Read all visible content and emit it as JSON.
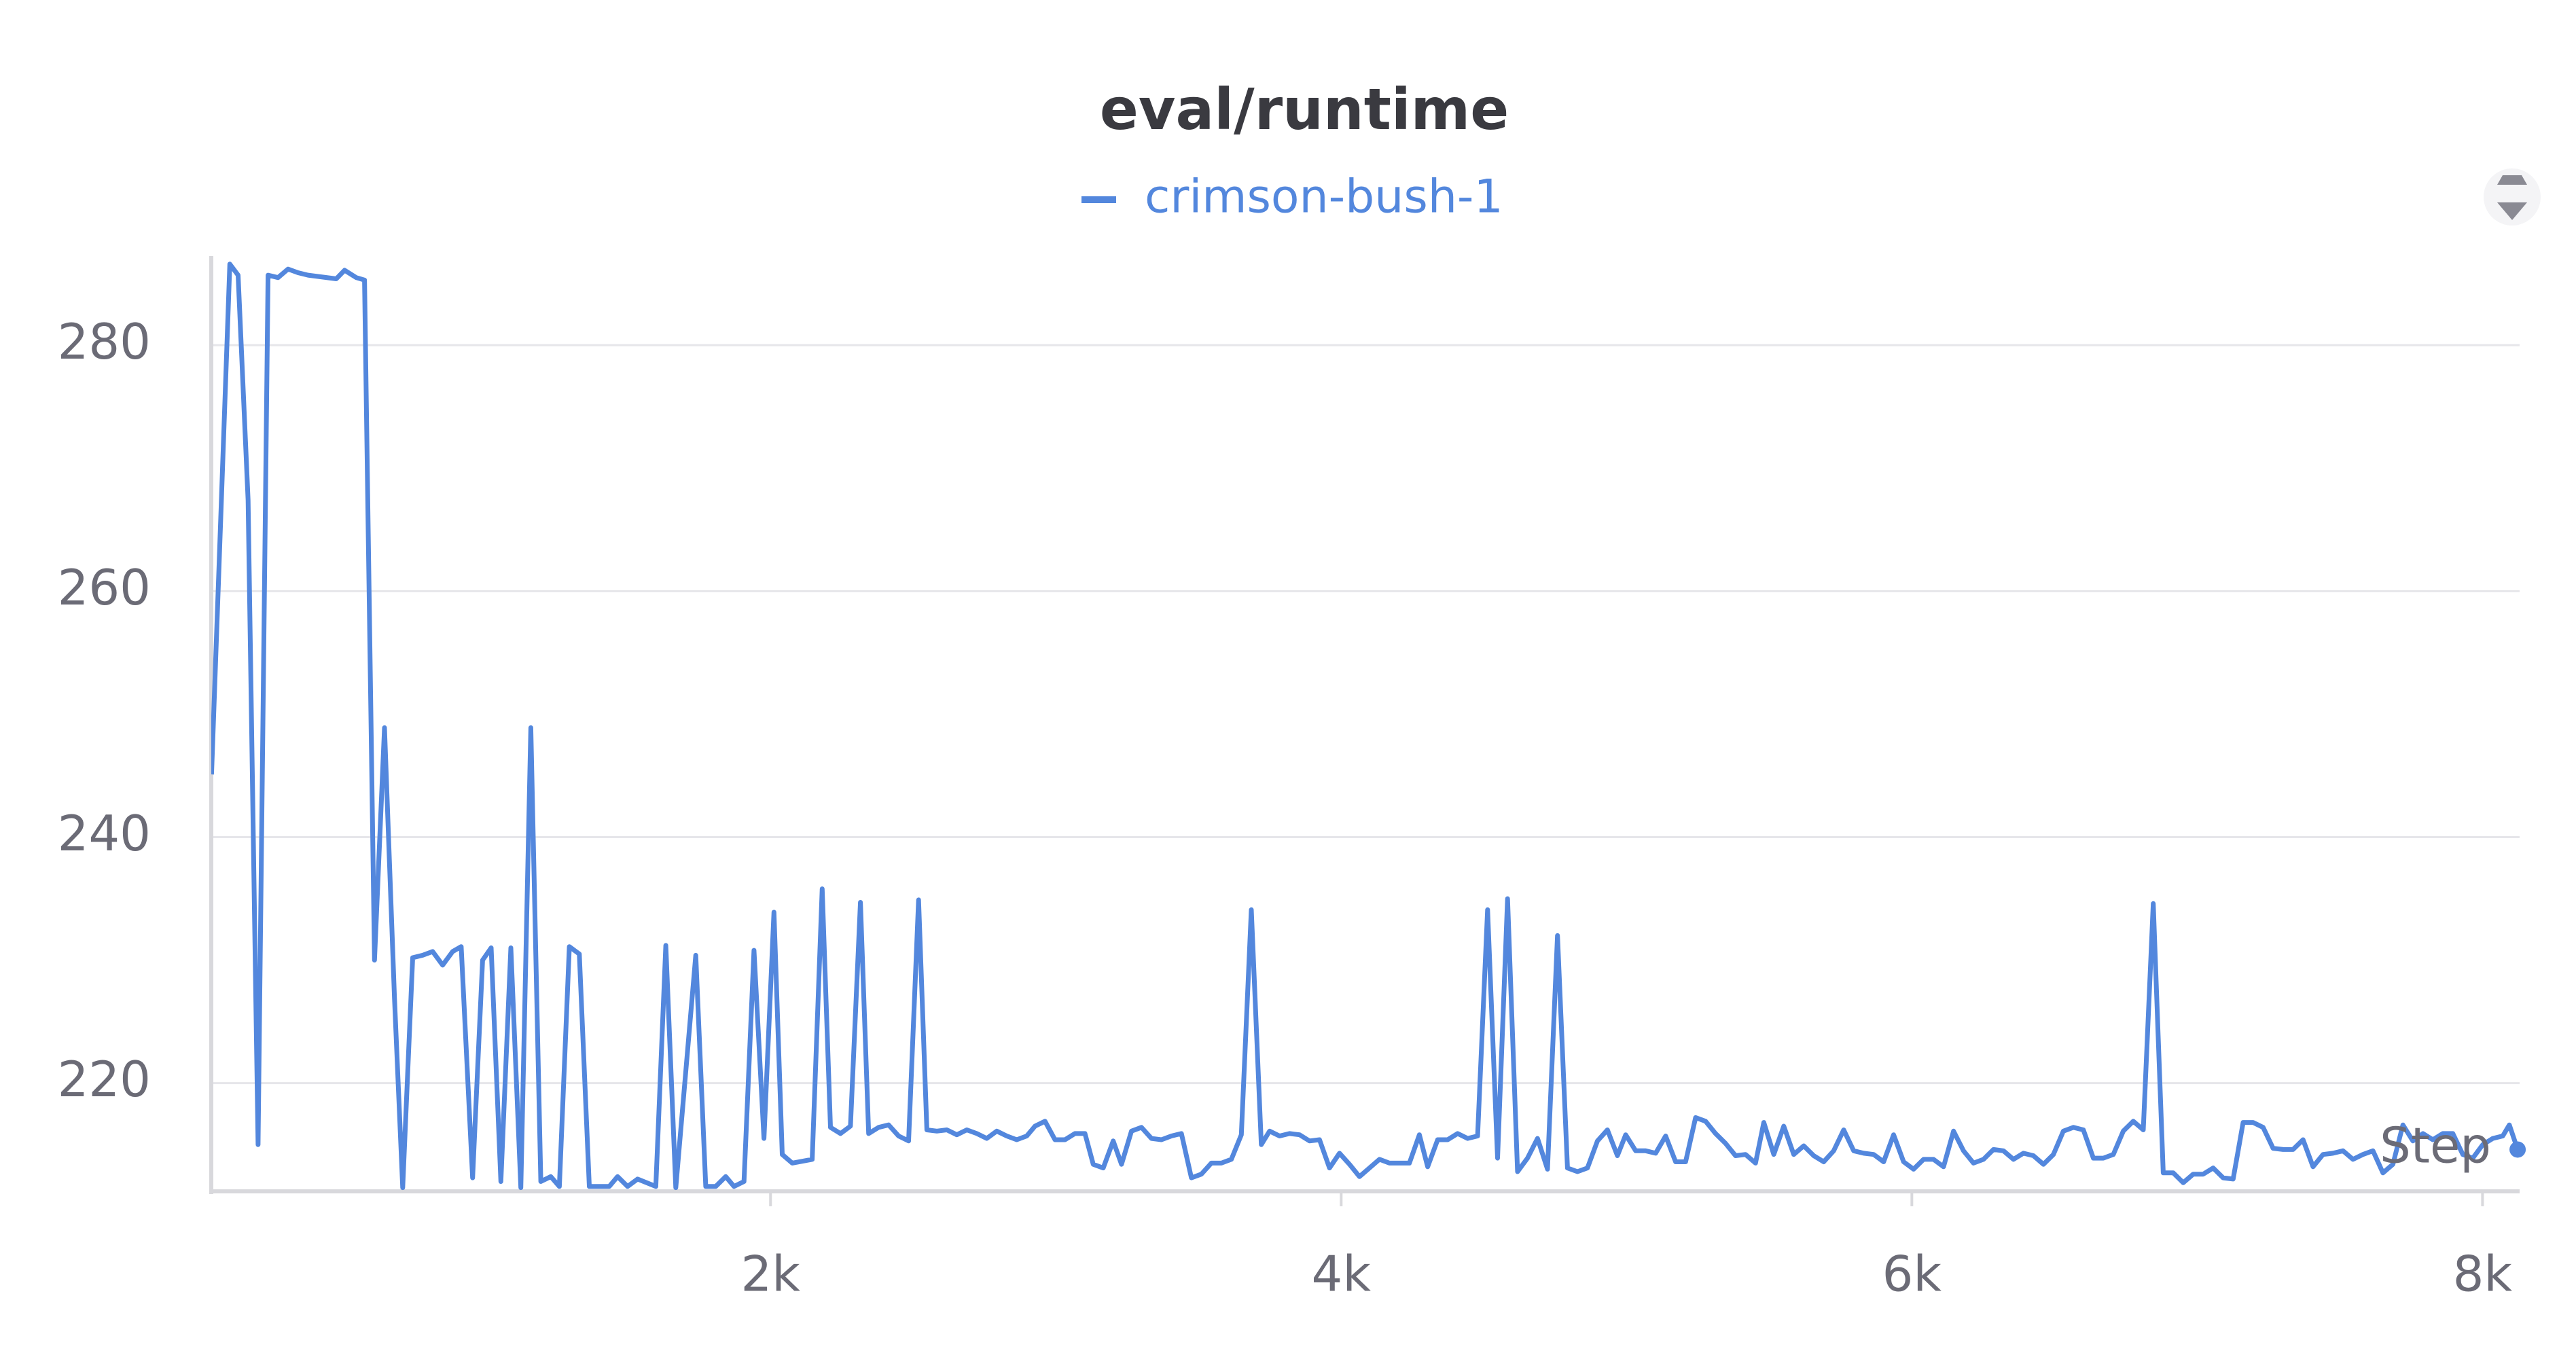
{
  "chart_data": {
    "type": "line",
    "title": "eval/runtime",
    "x_label": "Step",
    "x": [
      41,
      64,
      105,
      134,
      169,
      204,
      239,
      274,
      309,
      344,
      379,
      478,
      507,
      548,
      577,
      612,
      647,
      682,
      711,
      746,
      781,
      816,
      851,
      886,
      916,
      956,
      991,
      1021,
      1055,
      1090,
      1125,
      1160,
      1195,
      1230,
      1260,
      1295,
      1330,
      1365,
      1435,
      1464,
      1499,
      1534,
      1598,
      1633,
      1668,
      1738,
      1773,
      1808,
      1843,
      1872,
      1907,
      1942,
      1977,
      2012,
      2041,
      2076,
      2146,
      2181,
      2210,
      2245,
      2280,
      2315,
      2344,
      2379,
      2414,
      2449,
      2484,
      2519,
      2548,
      2583,
      2618,
      2653,
      2688,
      2723,
      2758,
      2793,
      2828,
      2863,
      2898,
      2927,
      2962,
      2997,
      3032,
      3067,
      3102,
      3131,
      3166,
      3201,
      3230,
      3265,
      3300,
      3335,
      3370,
      3405,
      3440,
      3475,
      3510,
      3545,
      3580,
      3615,
      3650,
      3685,
      3720,
      3749,
      3784,
      3819,
      3854,
      3889,
      3924,
      3959,
      3994,
      4029,
      4064,
      4099,
      4134,
      4169,
      4239,
      4274,
      4303,
      4338,
      4373,
      4408,
      4443,
      4478,
      4513,
      4548,
      4583,
      4618,
      4653,
      4688,
      4723,
      4758,
      4793,
      4828,
      4863,
      4898,
      4933,
      4968,
      4997,
      5032,
      5067,
      5102,
      5137,
      5172,
      5207,
      5242,
      5277,
      5312,
      5347,
      5382,
      5417,
      5452,
      5481,
      5516,
      5551,
      5586,
      5621,
      5656,
      5691,
      5726,
      5761,
      5796,
      5831,
      5866,
      5901,
      5936,
      5971,
      6006,
      6041,
      6076,
      6111,
      6146,
      6181,
      6216,
      6251,
      6286,
      6321,
      6356,
      6391,
      6426,
      6461,
      6496,
      6531,
      6566,
      6601,
      6636,
      6671,
      6706,
      6741,
      6776,
      6811,
      6846,
      6881,
      6916,
      6951,
      6986,
      7021,
      7056,
      7091,
      7126,
      7161,
      7196,
      7231,
      7266,
      7301,
      7336,
      7371,
      7406,
      7441,
      7476,
      7511,
      7546,
      7581,
      7616,
      7651,
      7686,
      7721,
      7756,
      7791,
      7826,
      7861,
      7896,
      7931,
      7966,
      8001,
      8036,
      8071,
      8094,
      8123
    ],
    "series": [
      {
        "name": "crimson-bush-1",
        "color": "#5387dd",
        "values": [
          245.1,
          260,
          286.6,
          285.7,
          267.4,
          215,
          285.7,
          285.5,
          286.2,
          285.9,
          285.7,
          285.4,
          286.1,
          285.5,
          285.3,
          230,
          248.9,
          226.9,
          211.5,
          230.2,
          230.4,
          230.7,
          229.6,
          230.7,
          231.1,
          212.3,
          230,
          231,
          212,
          231,
          211.5,
          248.9,
          212,
          212.4,
          211.6,
          231.1,
          230.5,
          211.6,
          211.6,
          212.4,
          211.6,
          212.2,
          211.6,
          231.2,
          211.5,
          230.4,
          211.6,
          211.6,
          212.4,
          211.6,
          212,
          230.8,
          215.5,
          233.9,
          214.2,
          213.5,
          213.8,
          235.8,
          216.4,
          215.9,
          216.5,
          234.7,
          215.9,
          216.4,
          216.6,
          215.7,
          215.3,
          234.9,
          216.2,
          216.1,
          216.2,
          215.8,
          216.2,
          215.9,
          215.5,
          216.1,
          215.7,
          215.4,
          215.7,
          216.5,
          216.9,
          215.4,
          215.4,
          215.9,
          215.9,
          213.4,
          213.1,
          215.3,
          213.4,
          216.1,
          216.4,
          215.5,
          215.4,
          215.7,
          215.9,
          212.3,
          212.6,
          213.5,
          213.5,
          213.8,
          215.8,
          234.1,
          215,
          216.1,
          215.7,
          215.9,
          215.8,
          215.3,
          215.4,
          213.1,
          214.3,
          213.4,
          212.4,
          213.1,
          213.8,
          213.5,
          213.5,
          215.8,
          213.2,
          215.4,
          215.4,
          215.9,
          215.5,
          215.7,
          234.1,
          213.9,
          235,
          212.8,
          213.9,
          215.5,
          213,
          232,
          213.1,
          212.8,
          213.1,
          215.3,
          216.2,
          214.1,
          215.8,
          214.5,
          214.5,
          214.3,
          215.7,
          213.6,
          213.6,
          217.2,
          216.9,
          215.9,
          215.1,
          214.1,
          214.2,
          213.5,
          216.8,
          214.2,
          216.5,
          214.2,
          214.9,
          214.1,
          213.6,
          214.5,
          216.2,
          214.5,
          214.3,
          214.2,
          213.6,
          215.8,
          213.6,
          213,
          213.8,
          213.8,
          213.2,
          216.1,
          214.5,
          213.5,
          213.8,
          214.6,
          214.5,
          213.8,
          214.3,
          214.1,
          213.4,
          214.2,
          216.1,
          216.4,
          216.2,
          213.9,
          213.9,
          214.2,
          216.1,
          216.9,
          216.2,
          234.6,
          212.7,
          212.7,
          211.9,
          212.6,
          212.6,
          213.1,
          212.3,
          212.2,
          216.8,
          216.8,
          216.4,
          214.7,
          214.6,
          214.6,
          215.4,
          213.2,
          214.2,
          214.3,
          214.5,
          213.8,
          214.2,
          214.5,
          212.7,
          213.4,
          216.6,
          215.3,
          215.9,
          215.4,
          215.9,
          215.9,
          214.2,
          213.9,
          215,
          215.5,
          215.7,
          216.6,
          214.6
        ]
      }
    ],
    "xlim": [
      40,
      8130
    ],
    "ylim": [
      211.2,
      286.7
    ],
    "xticks": [
      {
        "value": 2000,
        "label": "2k"
      },
      {
        "value": 4000,
        "label": "4k"
      },
      {
        "value": 6000,
        "label": "6k"
      },
      {
        "value": 8000,
        "label": "8k"
      }
    ],
    "yticks": [
      220,
      240,
      260,
      280
    ],
    "grid": true
  }
}
